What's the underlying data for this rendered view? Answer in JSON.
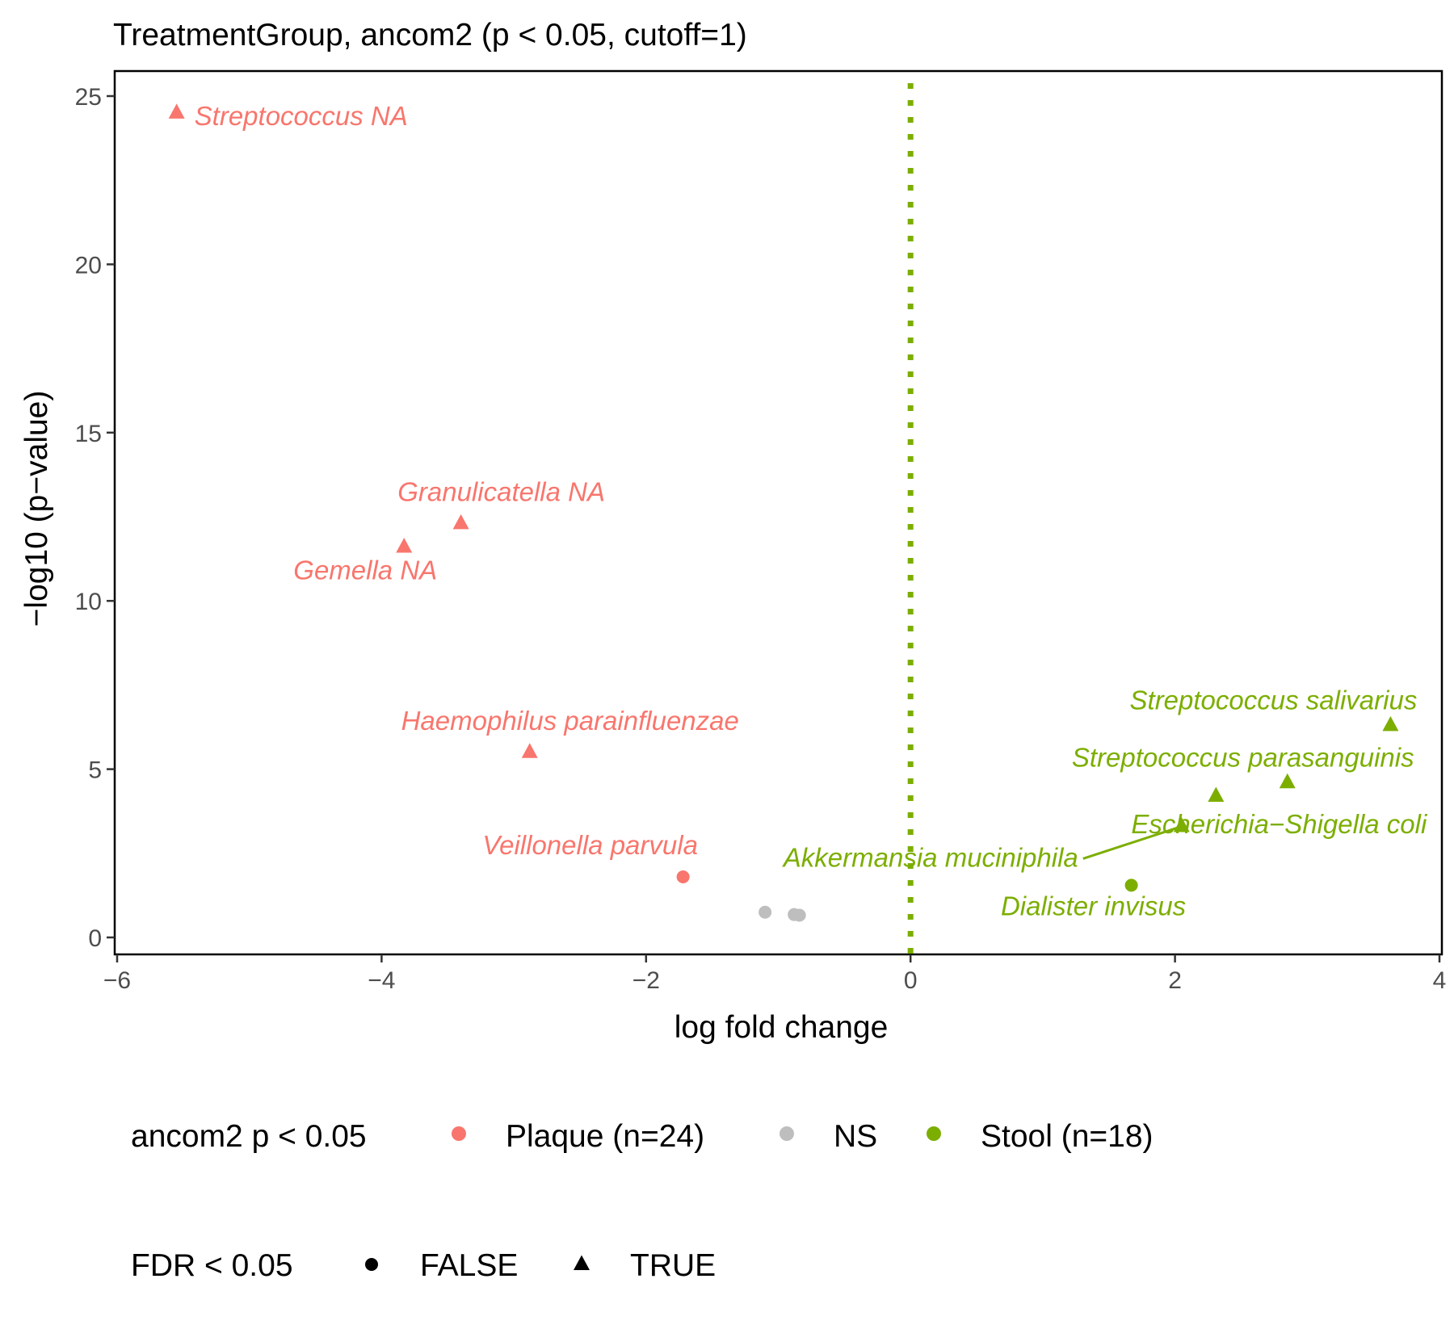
{
  "chart_data": {
    "type": "scatter",
    "title": "TreatmentGroup, ancom2 (p < 0.05, cutoff=1)",
    "xlabel": "log fold change",
    "ylabel": "−log10 (p−value)",
    "xlim": [
      -6,
      4
    ],
    "ylim": [
      0,
      25.7
    ],
    "x_ticks": [
      -6,
      -4,
      -2,
      0,
      2,
      4
    ],
    "x_tick_labels": [
      "−6",
      "−4",
      "−2",
      "0",
      "2",
      "4"
    ],
    "y_ticks": [
      0,
      5,
      10,
      15,
      20,
      25
    ],
    "y_tick_labels": [
      "0",
      "5",
      "10",
      "15",
      "20",
      "25"
    ],
    "grid": false,
    "reference_line": {
      "x": 0,
      "style": "dotted",
      "color": "#7CAE00"
    },
    "colors": {
      "Plaque": "#F8766D",
      "NS": "#BEBEBE",
      "Stool": "#7CAE00"
    },
    "points": [
      {
        "label": "Streptococcus NA",
        "x": -5.55,
        "y": 24.5,
        "group": "Plaque",
        "fdr": true
      },
      {
        "label": "Granulicatella NA",
        "x": -3.4,
        "y": 12.3,
        "group": "Plaque",
        "fdr": true
      },
      {
        "label": "Gemella NA",
        "x": -3.83,
        "y": 11.6,
        "group": "Plaque",
        "fdr": true
      },
      {
        "label": "Haemophilus parainfluenzae",
        "x": -2.88,
        "y": 5.5,
        "group": "Plaque",
        "fdr": true
      },
      {
        "label": "Veillonella parvula",
        "x": -1.72,
        "y": 1.8,
        "group": "Plaque",
        "fdr": false
      },
      {
        "label": "",
        "x": -1.1,
        "y": 0.75,
        "group": "NS",
        "fdr": false
      },
      {
        "label": "",
        "x": -0.88,
        "y": 0.68,
        "group": "NS",
        "fdr": false
      },
      {
        "label": "",
        "x": -0.84,
        "y": 0.66,
        "group": "NS",
        "fdr": false
      },
      {
        "label": "Streptococcus salivarius",
        "x": 3.63,
        "y": 6.3,
        "group": "Stool",
        "fdr": true
      },
      {
        "label": "Streptococcus parasanguinis",
        "x": 2.85,
        "y": 4.6,
        "group": "Stool",
        "fdr": true
      },
      {
        "label": "Escherichia−Shigella coli",
        "x": 2.31,
        "y": 4.2,
        "group": "Stool",
        "fdr": true
      },
      {
        "label": "Akkermansia muciniphila",
        "x": 2.05,
        "y": 3.3,
        "group": "Stool",
        "fdr": true
      },
      {
        "label": "Dialister invisus",
        "x": 1.67,
        "y": 1.55,
        "group": "Stool",
        "fdr": false
      }
    ],
    "legend": {
      "placement": "bottom",
      "color_title": "ancom2 p < 0.05",
      "color_items": [
        {
          "label": "Plaque (n=24)",
          "group": "Plaque"
        },
        {
          "label": "NS",
          "group": "NS"
        },
        {
          "label": "Stool (n=18)",
          "group": "Stool"
        }
      ],
      "shape_title": "FDR < 0.05",
      "shape_items": [
        {
          "label": "FALSE",
          "shape": "circle"
        },
        {
          "label": "TRUE",
          "shape": "triangle"
        }
      ]
    }
  }
}
